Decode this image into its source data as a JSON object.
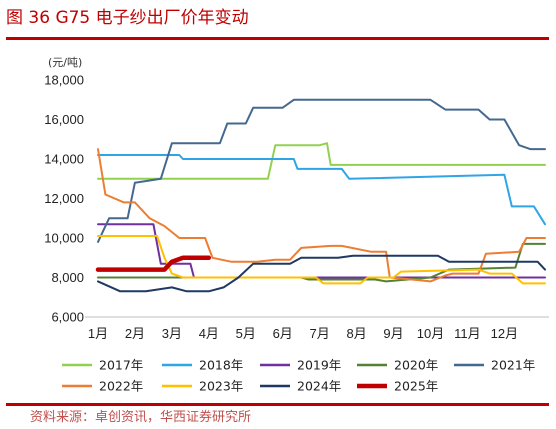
{
  "figure_title": "图 36 G75 电子纱出厂价年变动",
  "source": "资料来源：卓创资讯，华西证券研究所",
  "chart_data": {
    "type": "line",
    "ylabel": "(元/吨)",
    "ylim": [
      6000,
      18000
    ],
    "yticks": [
      "6,000",
      "8,000",
      "10,000",
      "12,000",
      "14,000",
      "16,000",
      "18,000"
    ],
    "xlim": [
      1,
      13.1
    ],
    "categories": [
      "1月",
      "2月",
      "3月",
      "4月",
      "5月",
      "6月",
      "7月",
      "8月",
      "9月",
      "10月",
      "11月",
      "12月"
    ],
    "grid": false,
    "legend": "bottom",
    "series": [
      {
        "name": "2017年",
        "color": "#92d050",
        "width": 2,
        "x": [
          1,
          1.5,
          5.4,
          5.6,
          5.8,
          7.0,
          7.2,
          7.3,
          13.1
        ],
        "y": [
          13000,
          13000,
          13000,
          13000,
          14700,
          14700,
          14800,
          13700,
          13700
        ]
      },
      {
        "name": "2018年",
        "color": "#2fa4e7",
        "width": 2,
        "x": [
          1,
          3.2,
          3.3,
          6.3,
          6.4,
          7.6,
          7.8,
          12.0,
          12.2,
          12.8,
          13.1
        ],
        "y": [
          14200,
          14200,
          14000,
          14000,
          13500,
          13500,
          13000,
          13200,
          11600,
          11600,
          10700
        ]
      },
      {
        "name": "2019年",
        "color": "#7030a0",
        "width": 2,
        "x": [
          1,
          2.5,
          2.7,
          3.5,
          3.6,
          5.2,
          13.1
        ],
        "y": [
          10700,
          10700,
          8700,
          8700,
          8000,
          8000,
          8000
        ]
      },
      {
        "name": "2020年",
        "color": "#548235",
        "width": 2,
        "x": [
          1,
          6.5,
          6.7,
          8.5,
          8.8,
          10.0,
          10.5,
          12.3,
          12.5,
          13.1
        ],
        "y": [
          8000,
          8000,
          7900,
          7900,
          7800,
          8000,
          8400,
          8500,
          9700,
          9700
        ]
      },
      {
        "name": "2021年",
        "color": "#44698f",
        "width": 2,
        "x": [
          1,
          1.3,
          1.8,
          2.0,
          2.7,
          3.0,
          3.2,
          4.3,
          4.5,
          5.0,
          5.2,
          6.0,
          6.3,
          7.0,
          8.0,
          10.0,
          10.4,
          11.3,
          11.6,
          12.0,
          12.4,
          12.7,
          13.1
        ],
        "y": [
          9800,
          11000,
          11000,
          12800,
          13000,
          14800,
          14800,
          14800,
          15800,
          15800,
          16600,
          16600,
          17000,
          17000,
          17000,
          17000,
          16500,
          16500,
          16000,
          16000,
          14700,
          14500,
          14500
        ]
      },
      {
        "name": "2022年",
        "color": "#ed7d31",
        "width": 2,
        "x": [
          1,
          1.2,
          1.7,
          2.0,
          2.4,
          2.8,
          3.2,
          3.9,
          4.1,
          4.6,
          5.3,
          5.8,
          6.2,
          6.5,
          7.3,
          7.6,
          8.4,
          8.8,
          8.9,
          9.5,
          10.0,
          10.4,
          10.6,
          11.3,
          11.5,
          12.4,
          12.6,
          13.1
        ],
        "y": [
          14500,
          12200,
          11800,
          11800,
          11000,
          10600,
          10000,
          10000,
          9000,
          8800,
          8800,
          8900,
          8900,
          9500,
          9600,
          9600,
          9300,
          9300,
          8000,
          7900,
          7800,
          8100,
          8200,
          8200,
          9200,
          9300,
          10000,
          10000
        ]
      },
      {
        "name": "2023年",
        "color": "#ffc000",
        "width": 2,
        "x": [
          1,
          2.6,
          2.8,
          3.0,
          3.3,
          6.9,
          7.1,
          8.1,
          8.3,
          9.0,
          9.2,
          11.3,
          11.6,
          12.2,
          12.5,
          13.1
        ],
        "y": [
          10100,
          10100,
          9000,
          8200,
          8000,
          8000,
          7700,
          7700,
          8000,
          8000,
          8300,
          8400,
          8200,
          8200,
          7700,
          7700
        ]
      },
      {
        "name": "2024年",
        "color": "#1f3864",
        "width": 2,
        "x": [
          1,
          1.6,
          2.3,
          3.0,
          3.4,
          4.0,
          4.4,
          4.8,
          5.2,
          6.2,
          6.5,
          7.5,
          7.9,
          8.7,
          9.1,
          10.2,
          10.5,
          12.9,
          13.1
        ],
        "y": [
          7800,
          7300,
          7300,
          7500,
          7300,
          7300,
          7500,
          8000,
          8700,
          8700,
          9000,
          9000,
          9100,
          9100,
          9100,
          9100,
          8800,
          8800,
          8400
        ]
      },
      {
        "name": "2025年",
        "color": "#c00000",
        "width": 4.5,
        "x": [
          1,
          2.8,
          3.0,
          3.3,
          4.0
        ],
        "y": [
          8400,
          8400,
          8800,
          9000,
          9000
        ]
      }
    ]
  }
}
